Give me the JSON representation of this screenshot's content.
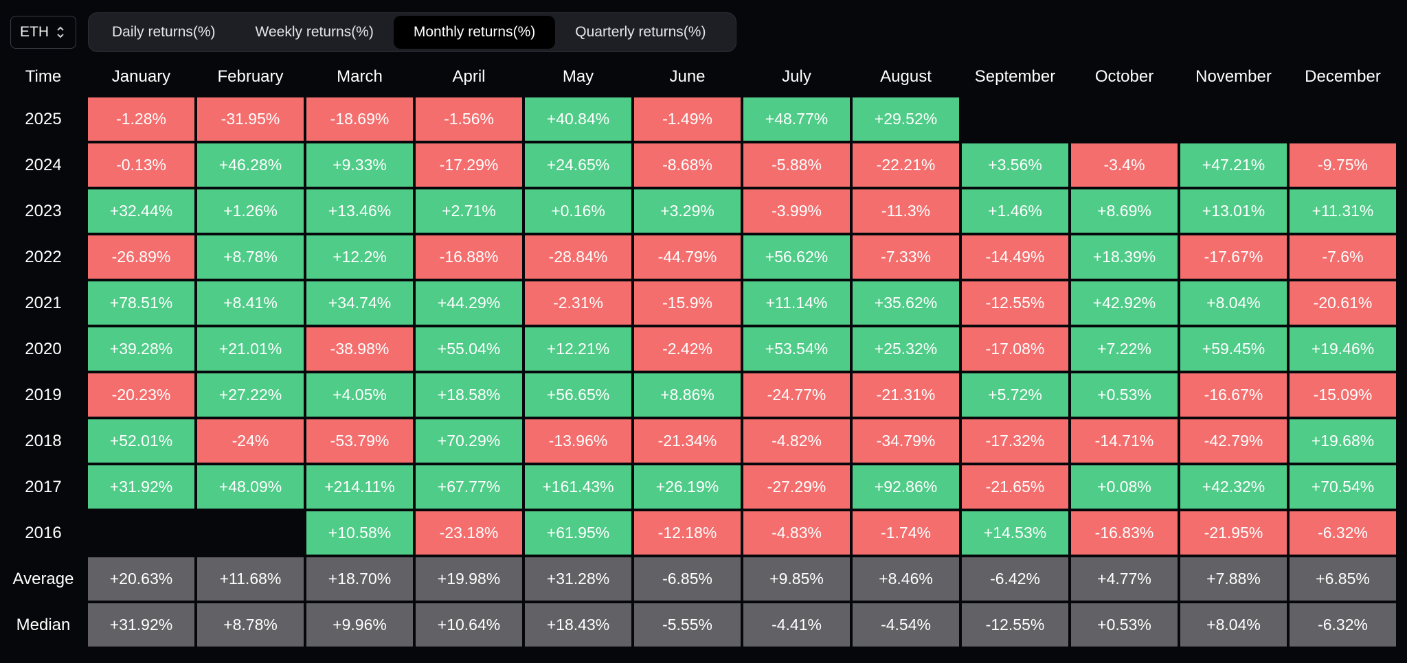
{
  "asset": "ETH",
  "tabs": [
    "Daily returns(%)",
    "Weekly returns(%)",
    "Monthly returns(%)",
    "Quarterly returns(%)"
  ],
  "active_tab": 2,
  "time_header": "Time",
  "months": [
    "January",
    "February",
    "March",
    "April",
    "May",
    "June",
    "July",
    "August",
    "September",
    "October",
    "November",
    "December"
  ],
  "rows": [
    {
      "label": "2025",
      "kind": "year",
      "values": [
        "-1.28%",
        "-31.95%",
        "-18.69%",
        "-1.56%",
        "+40.84%",
        "-1.49%",
        "+48.77%",
        "+29.52%",
        "",
        "",
        "",
        ""
      ]
    },
    {
      "label": "2024",
      "kind": "year",
      "values": [
        "-0.13%",
        "+46.28%",
        "+9.33%",
        "-17.29%",
        "+24.65%",
        "-8.68%",
        "-5.88%",
        "-22.21%",
        "+3.56%",
        "-3.4%",
        "+47.21%",
        "-9.75%"
      ]
    },
    {
      "label": "2023",
      "kind": "year",
      "values": [
        "+32.44%",
        "+1.26%",
        "+13.46%",
        "+2.71%",
        "+0.16%",
        "+3.29%",
        "-3.99%",
        "-11.3%",
        "+1.46%",
        "+8.69%",
        "+13.01%",
        "+11.31%"
      ]
    },
    {
      "label": "2022",
      "kind": "year",
      "values": [
        "-26.89%",
        "+8.78%",
        "+12.2%",
        "-16.88%",
        "-28.84%",
        "-44.79%",
        "+56.62%",
        "-7.33%",
        "-14.49%",
        "+18.39%",
        "-17.67%",
        "-7.6%"
      ]
    },
    {
      "label": "2021",
      "kind": "year",
      "values": [
        "+78.51%",
        "+8.41%",
        "+34.74%",
        "+44.29%",
        "-2.31%",
        "-15.9%",
        "+11.14%",
        "+35.62%",
        "-12.55%",
        "+42.92%",
        "+8.04%",
        "-20.61%"
      ]
    },
    {
      "label": "2020",
      "kind": "year",
      "values": [
        "+39.28%",
        "+21.01%",
        "-38.98%",
        "+55.04%",
        "+12.21%",
        "-2.42%",
        "+53.54%",
        "+25.32%",
        "-17.08%",
        "+7.22%",
        "+59.45%",
        "+19.46%"
      ]
    },
    {
      "label": "2019",
      "kind": "year",
      "values": [
        "-20.23%",
        "+27.22%",
        "+4.05%",
        "+18.58%",
        "+56.65%",
        "+8.86%",
        "-24.77%",
        "-21.31%",
        "+5.72%",
        "+0.53%",
        "-16.67%",
        "-15.09%"
      ]
    },
    {
      "label": "2018",
      "kind": "year",
      "values": [
        "+52.01%",
        "-24%",
        "-53.79%",
        "+70.29%",
        "-13.96%",
        "-21.34%",
        "-4.82%",
        "-34.79%",
        "-17.32%",
        "-14.71%",
        "-42.79%",
        "+19.68%"
      ]
    },
    {
      "label": "2017",
      "kind": "year",
      "values": [
        "+31.92%",
        "+48.09%",
        "+214.11%",
        "+67.77%",
        "+161.43%",
        "+26.19%",
        "-27.29%",
        "+92.86%",
        "-21.65%",
        "+0.08%",
        "+42.32%",
        "+70.54%"
      ]
    },
    {
      "label": "2016",
      "kind": "year",
      "values": [
        "",
        "",
        "+10.58%",
        "-23.18%",
        "+61.95%",
        "-12.18%",
        "-4.83%",
        "-1.74%",
        "+14.53%",
        "-16.83%",
        "-21.95%",
        "-6.32%"
      ]
    },
    {
      "label": "Average",
      "kind": "stat",
      "values": [
        "+20.63%",
        "+11.68%",
        "+18.70%",
        "+19.98%",
        "+31.28%",
        "-6.85%",
        "+9.85%",
        "+8.46%",
        "-6.42%",
        "+4.77%",
        "+7.88%",
        "+6.85%"
      ]
    },
    {
      "label": "Median",
      "kind": "stat",
      "values": [
        "+31.92%",
        "+8.78%",
        "+9.96%",
        "+10.64%",
        "+18.43%",
        "-5.55%",
        "-4.41%",
        "-4.54%",
        "-12.55%",
        "+0.53%",
        "+8.04%",
        "-6.32%"
      ]
    }
  ],
  "colors": {
    "positive": "#4fcc88",
    "negative": "#f46e6e",
    "stat": "#626266",
    "background": "#06070b"
  }
}
